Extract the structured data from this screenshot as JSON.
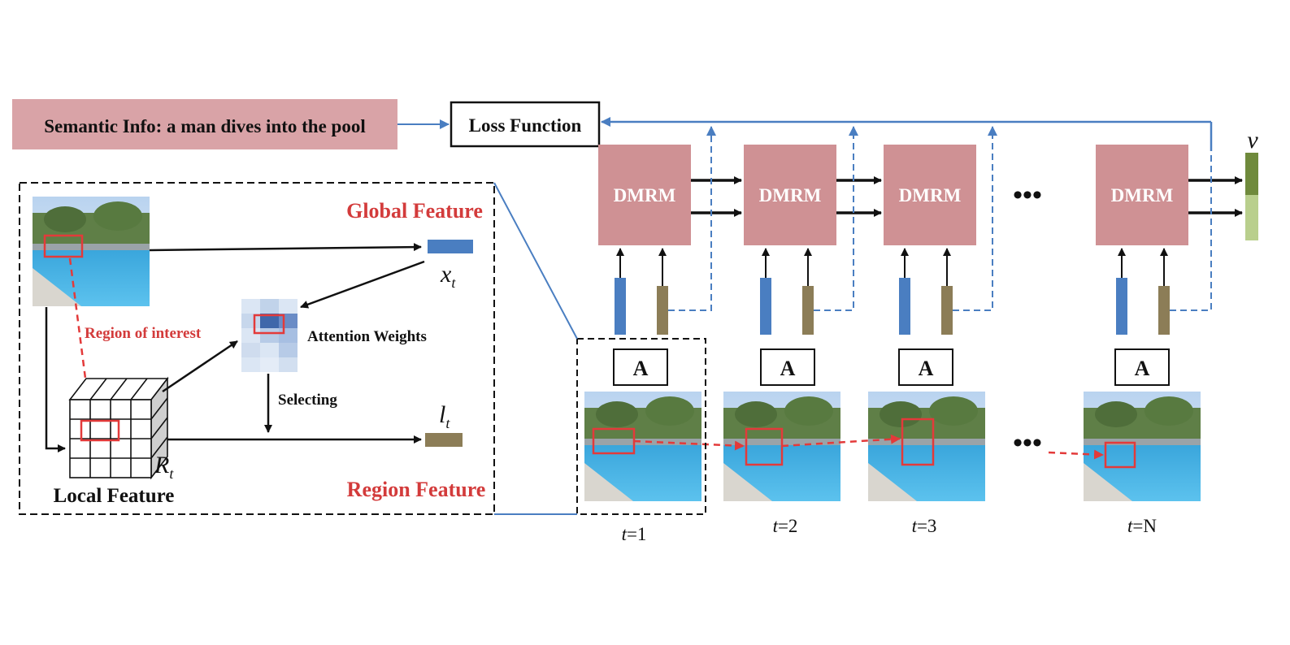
{
  "semantic_info": "Semantic Info: a man dives into the pool",
  "loss_function": "Loss Function",
  "dmrm_label": "DMRM",
  "attention_label": "A",
  "ellipsis": "•••",
  "inset": {
    "global_feature": "Global Feature",
    "region_feature": "Region Feature",
    "region_of_interest": "Region of interest",
    "attention_weights": "Attention Weights",
    "selecting": "Selecting",
    "local_feature": "Local Feature",
    "x_symbol": "x",
    "x_sub": "t",
    "l_symbol": "l",
    "l_sub": "t",
    "r_symbol": "R",
    "r_sub": "t"
  },
  "v_symbol": "v",
  "time_steps": [
    {
      "t": "t",
      "eq": "=1"
    },
    {
      "t": "t",
      "eq": "=2"
    },
    {
      "t": "t",
      "eq": "=3"
    },
    {
      "t": "t",
      "eq": "=N"
    }
  ],
  "colors": {
    "semantic_bg": "#d9a3a7",
    "dmrm_fill": "#cf9194",
    "global_bar": "#4a7ec1",
    "region_bar": "#8c7d57",
    "connector": "#4a7ec1",
    "roi": "#e33a3a",
    "v_dark": "#6f8a3c",
    "v_light": "#b9cf8d"
  }
}
